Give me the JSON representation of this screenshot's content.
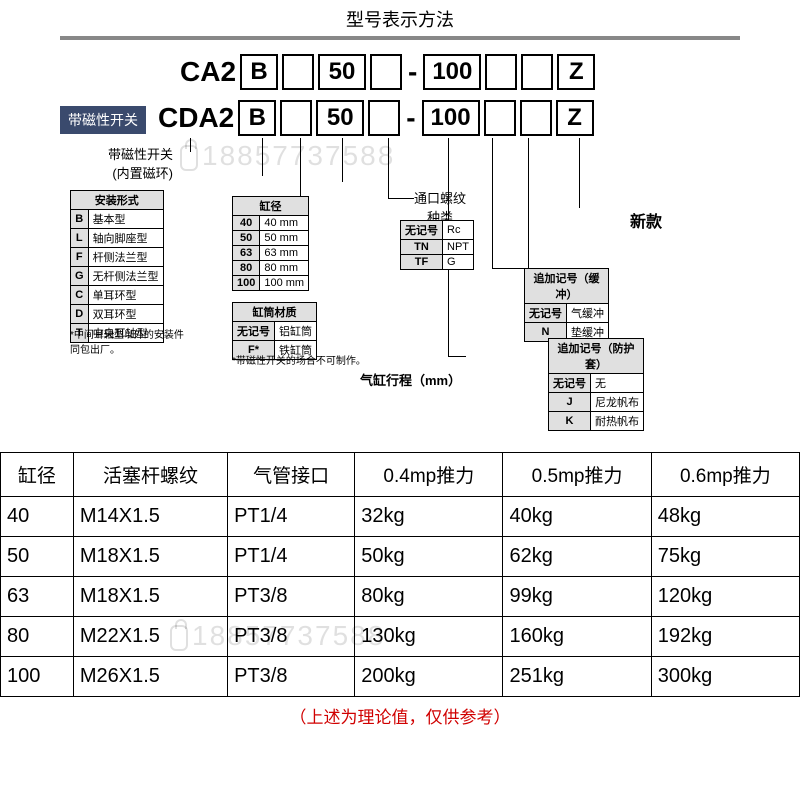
{
  "title": "型号表示方法",
  "watermark": "18857737588",
  "model": {
    "row1_prefix": "CA2",
    "row2_prefix": "CDA2",
    "box_B": "B",
    "box_50": "50",
    "box_100": "100",
    "box_Z": "Z",
    "badge_magnetic": "带磁性开关",
    "label_magnetic_sub": "带磁性开关\n(内置磁环)",
    "newmark": "新款"
  },
  "install_form": {
    "caption": "安装形式",
    "rows": [
      [
        "B",
        "基本型"
      ],
      [
        "L",
        "轴向脚座型"
      ],
      [
        "F",
        "杆侧法兰型"
      ],
      [
        "G",
        "无杆侧法兰型"
      ],
      [
        "C",
        "单耳环型"
      ],
      [
        "D",
        "双耳环型"
      ],
      [
        "T",
        "中央耳轴型"
      ]
    ],
    "note": "*中间耳轴型以外的安装件\n同包出厂。"
  },
  "bore": {
    "caption": "缸径",
    "rows": [
      [
        "40",
        "40 mm"
      ],
      [
        "50",
        "50 mm"
      ],
      [
        "63",
        "63 mm"
      ],
      [
        "80",
        "80 mm"
      ],
      [
        "100",
        "100 mm"
      ]
    ]
  },
  "material": {
    "caption": "缸筒材质",
    "rows": [
      [
        "无记号",
        "铝缸筒"
      ],
      [
        "F*",
        "铁缸筒"
      ]
    ],
    "note": "*带磁性开关的场合不可制作。"
  },
  "thread": {
    "label": "通口螺纹\n种类",
    "rows": [
      [
        "无记号",
        "Rc"
      ],
      [
        "TN",
        "NPT"
      ],
      [
        "TF",
        "G"
      ]
    ]
  },
  "stroke_label": "气缸行程（mm）",
  "cushion": {
    "caption": "追加记号（缓冲）",
    "rows": [
      [
        "无记号",
        "气缓冲"
      ],
      [
        "N",
        "垫缓冲"
      ]
    ]
  },
  "cover": {
    "caption": "追加记号（防护套）",
    "rows": [
      [
        "无记号",
        "无"
      ],
      [
        "J",
        "尼龙帆布"
      ],
      [
        "K",
        "耐热帆布"
      ]
    ]
  },
  "datatable": {
    "headers": [
      "缸径",
      "活塞杆螺纹",
      "气管接口",
      "0.4mp推力",
      "0.5mp推力",
      "0.6mp推力"
    ],
    "rows": [
      [
        "40",
        "M14X1.5",
        "PT1/4",
        "32kg",
        "40kg",
        "48kg"
      ],
      [
        "50",
        "M18X1.5",
        "PT1/4",
        "50kg",
        "62kg",
        "75kg"
      ],
      [
        "63",
        "M18X1.5",
        "PT3/8",
        "80kg",
        "99kg",
        "120kg"
      ],
      [
        "80",
        "M22X1.5",
        "PT3/8",
        "130kg",
        "160kg",
        "192kg"
      ],
      [
        "100",
        "M26X1.5",
        "PT3/8",
        "200kg",
        "251kg",
        "300kg"
      ]
    ]
  },
  "footer": "（上述为理论值，仅供参考）",
  "colors": {
    "badge_bg": "#3a4a6d",
    "border": "#000000",
    "footer": "#d00000",
    "hdr_bg": "#e0e0e0"
  }
}
